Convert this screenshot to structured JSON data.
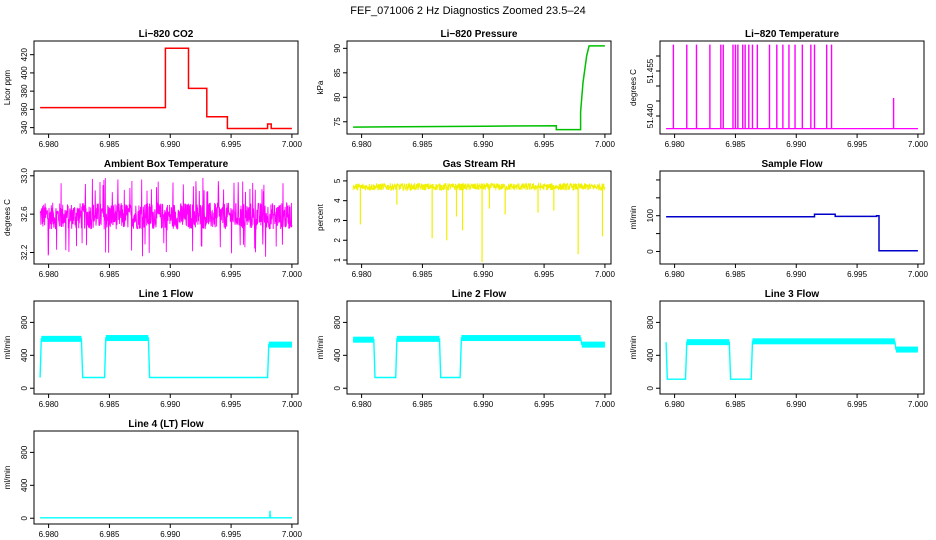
{
  "figure": {
    "title": "FEF_071006  2 Hz Diagnostics Zoomed 23.5–24"
  },
  "colors": {
    "red": "#ff0000",
    "green": "#00c000",
    "magenta": "#ff00ff",
    "yellow": "#f0f000",
    "blue": "#0000c8",
    "cyan": "#00ffff"
  },
  "chart_data": [
    {
      "type": "line",
      "title": "Li−820 CO2",
      "ylabel": "Licor ppm",
      "color": "#ff0000",
      "xlim": [
        6.9788,
        7.0005
      ],
      "ylim": [
        333,
        435
      ],
      "xticks": [
        6.98,
        6.985,
        6.99,
        6.995,
        7.0
      ],
      "xtick_labels": [
        "6.980",
        "6.985",
        "6.990",
        "6.995",
        "7.000"
      ],
      "yticks": [
        340,
        360,
        380,
        400,
        420
      ],
      "ytick_labels": [
        "340",
        "360",
        "380",
        "400",
        "420"
      ],
      "x": [
        6.9793,
        6.9896,
        6.9896,
        6.9915,
        6.9915,
        6.993,
        6.993,
        6.9947,
        6.9947,
        6.998,
        6.998,
        6.9983,
        6.9983,
        7.0
      ],
      "y": [
        362,
        362,
        427,
        427,
        383,
        383,
        352,
        352,
        339,
        339,
        344,
        344,
        339,
        339
      ]
    },
    {
      "type": "line",
      "title": "Li−820 Pressure",
      "ylabel": "kPa",
      "color": "#00c000",
      "xlim": [
        6.9788,
        7.0005
      ],
      "ylim": [
        72.5,
        91.5
      ],
      "xticks": [
        6.98,
        6.985,
        6.99,
        6.995,
        7.0
      ],
      "xtick_labels": [
        "6.980",
        "6.985",
        "6.990",
        "6.995",
        "7.000"
      ],
      "yticks": [
        75,
        80,
        85,
        90
      ],
      "ytick_labels": [
        "75",
        "80",
        "85",
        "90"
      ],
      "x": [
        6.9793,
        6.99,
        6.996,
        6.996,
        6.998,
        6.998,
        6.9982,
        6.9985,
        6.9987,
        7.0
      ],
      "y": [
        73.9,
        74.1,
        74.2,
        73.4,
        73.4,
        77,
        83,
        88.5,
        90.5,
        90.5
      ]
    },
    {
      "type": "spikes",
      "title": "Li−820 Temperature",
      "ylabel": "degrees C",
      "color": "#ff00ff",
      "xlim": [
        6.9788,
        7.0005
      ],
      "ylim": [
        51.434,
        51.465
      ],
      "xticks": [
        6.98,
        6.985,
        6.99,
        6.995,
        7.0
      ],
      "xtick_labels": [
        "6.980",
        "6.985",
        "6.990",
        "6.995",
        "7.000"
      ],
      "yticks": [
        51.44,
        51.445,
        51.45,
        51.455,
        51.46
      ],
      "ytick_labels": [
        "51.440",
        "",
        "",
        "51.455",
        ""
      ],
      "baseline": 51.4358,
      "peak": 51.4638,
      "x": [
        6.9799,
        6.981,
        6.9818,
        6.9829,
        6.9838,
        6.984,
        6.9848,
        6.985,
        6.9852,
        6.9856,
        6.9858,
        6.9861,
        6.9864,
        6.9868,
        6.9878,
        6.9884,
        6.9889,
        6.9894,
        6.9899,
        6.9905,
        6.9912,
        6.9915,
        6.9925,
        6.9929,
        6.998
      ]
    },
    {
      "type": "line",
      "title": "Ambient Box Temperature",
      "ylabel": "degrees C",
      "color": "#ff00ff",
      "xlim": [
        6.9788,
        7.0005
      ],
      "ylim": [
        32.08,
        33.05
      ],
      "xticks": [
        6.98,
        6.985,
        6.99,
        6.995,
        7.0
      ],
      "xtick_labels": [
        "6.980",
        "6.985",
        "6.990",
        "6.995",
        "7.000"
      ],
      "yticks": [
        32.2,
        32.6,
        33.0
      ],
      "ytick_labels": [
        "32.2",
        "32.6",
        "33.0"
      ],
      "noise": {
        "center": 32.58,
        "amplitude": 0.14,
        "spike_low": 32.15,
        "spike_high": 32.98
      }
    },
    {
      "type": "line",
      "title": "Gas Stream RH",
      "ylabel": "percent",
      "color": "#f0f000",
      "xlim": [
        6.9788,
        7.0005
      ],
      "ylim": [
        0.8,
        5.5
      ],
      "xticks": [
        6.98,
        6.985,
        6.99,
        6.995,
        7.0
      ],
      "xtick_labels": [
        "6.980",
        "6.985",
        "6.990",
        "6.995",
        "7.000"
      ],
      "yticks": [
        1,
        2,
        3,
        4,
        5
      ],
      "ytick_labels": [
        "1",
        "2",
        "3",
        "4",
        "5"
      ],
      "noise": {
        "center": 4.7,
        "amplitude": 0.18
      },
      "dips": [
        [
          6.9799,
          2.8
        ],
        [
          6.9829,
          3.8
        ],
        [
          6.9858,
          2.1
        ],
        [
          6.987,
          2.0
        ],
        [
          6.9878,
          3.2
        ],
        [
          6.9883,
          2.5
        ],
        [
          6.9899,
          0.9
        ],
        [
          6.9905,
          3.6
        ],
        [
          6.9918,
          3.3
        ],
        [
          6.9945,
          3.4
        ],
        [
          6.9958,
          3.5
        ],
        [
          6.9978,
          1.3
        ],
        [
          6.9998,
          2.2
        ]
      ]
    },
    {
      "type": "line",
      "title": "Sample Flow",
      "ylabel": "ml/min",
      "color": "#0000c8",
      "xlim": [
        6.9788,
        7.0005
      ],
      "ylim": [
        -35,
        225
      ],
      "xticks": [
        6.98,
        6.985,
        6.99,
        6.995,
        7.0
      ],
      "xtick_labels": [
        "6.980",
        "6.985",
        "6.990",
        "6.995",
        "7.000"
      ],
      "yticks": [
        0,
        50,
        100,
        150,
        200
      ],
      "ytick_labels": [
        "0",
        "",
        "100",
        "",
        ""
      ],
      "x": [
        6.9793,
        6.9915,
        6.9915,
        6.9932,
        6.9932,
        6.9966,
        6.9966,
        6.9968,
        6.9968,
        7.0
      ],
      "y": [
        97,
        97,
        104,
        104,
        98,
        98,
        100,
        100,
        2,
        2
      ]
    },
    {
      "type": "line",
      "title": "Line 1 Flow",
      "ylabel": "ml/min",
      "color": "#00ffff",
      "xlim": [
        6.9788,
        7.0005
      ],
      "ylim": [
        -70,
        1060
      ],
      "xticks": [
        6.98,
        6.985,
        6.99,
        6.995,
        7.0
      ],
      "xtick_labels": [
        "6.980",
        "6.985",
        "6.990",
        "6.995",
        "7.000"
      ],
      "yticks": [
        0,
        400,
        800
      ],
      "ytick_labels": [
        "0",
        "400",
        "800"
      ],
      "x": [
        6.9793,
        6.9794,
        6.9827,
        6.9828,
        6.9846,
        6.9847,
        6.9882,
        6.9883,
        6.998,
        6.9981,
        7.0
      ],
      "y": [
        130,
        600,
        600,
        130,
        130,
        610,
        610,
        130,
        130,
        530,
        530
      ]
    },
    {
      "type": "line",
      "title": "Line 2 Flow",
      "ylabel": "ml/min",
      "color": "#00ffff",
      "xlim": [
        6.9788,
        7.0005
      ],
      "ylim": [
        -70,
        1060
      ],
      "xticks": [
        6.98,
        6.985,
        6.99,
        6.995,
        7.0
      ],
      "xtick_labels": [
        "6.980",
        "6.985",
        "6.990",
        "6.995",
        "7.000"
      ],
      "yticks": [
        0,
        400,
        800
      ],
      "ytick_labels": [
        "0",
        "400",
        "800"
      ],
      "x": [
        6.9793,
        6.981,
        6.9811,
        6.9828,
        6.9829,
        6.9864,
        6.9865,
        6.9881,
        6.9882,
        6.998,
        6.9981,
        7.0
      ],
      "y": [
        590,
        590,
        130,
        130,
        600,
        600,
        130,
        130,
        610,
        610,
        530,
        530
      ]
    },
    {
      "type": "line",
      "title": "Line 3 Flow",
      "ylabel": "ml/min",
      "color": "#00ffff",
      "xlim": [
        6.9788,
        7.0005
      ],
      "ylim": [
        -70,
        1060
      ],
      "xticks": [
        6.98,
        6.985,
        6.99,
        6.995,
        7.0
      ],
      "xtick_labels": [
        "6.980",
        "6.985",
        "6.990",
        "6.995",
        "7.000"
      ],
      "yticks": [
        0,
        400,
        800
      ],
      "ytick_labels": [
        "0",
        "400",
        "800"
      ],
      "x": [
        6.9793,
        6.9794,
        6.9809,
        6.981,
        6.9845,
        6.9846,
        6.9863,
        6.9864,
        6.9981,
        6.9982,
        7.0
      ],
      "y": [
        560,
        110,
        110,
        560,
        560,
        110,
        110,
        570,
        570,
        470,
        470
      ]
    },
    {
      "type": "line",
      "title": "Line 4 (LT) Flow",
      "ylabel": "ml/min",
      "color": "#00ffff",
      "xlim": [
        6.9788,
        7.0005
      ],
      "ylim": [
        -70,
        1060
      ],
      "xticks": [
        6.98,
        6.985,
        6.99,
        6.995,
        7.0
      ],
      "xtick_labels": [
        "6.980",
        "6.985",
        "6.990",
        "6.995",
        "7.000"
      ],
      "yticks": [
        0,
        400,
        800
      ],
      "ytick_labels": [
        "0",
        "400",
        "800"
      ],
      "x": [
        6.9793,
        6.99818,
        6.9982,
        6.99822,
        7.0
      ],
      "y": [
        5,
        5,
        90,
        5,
        5
      ]
    }
  ]
}
